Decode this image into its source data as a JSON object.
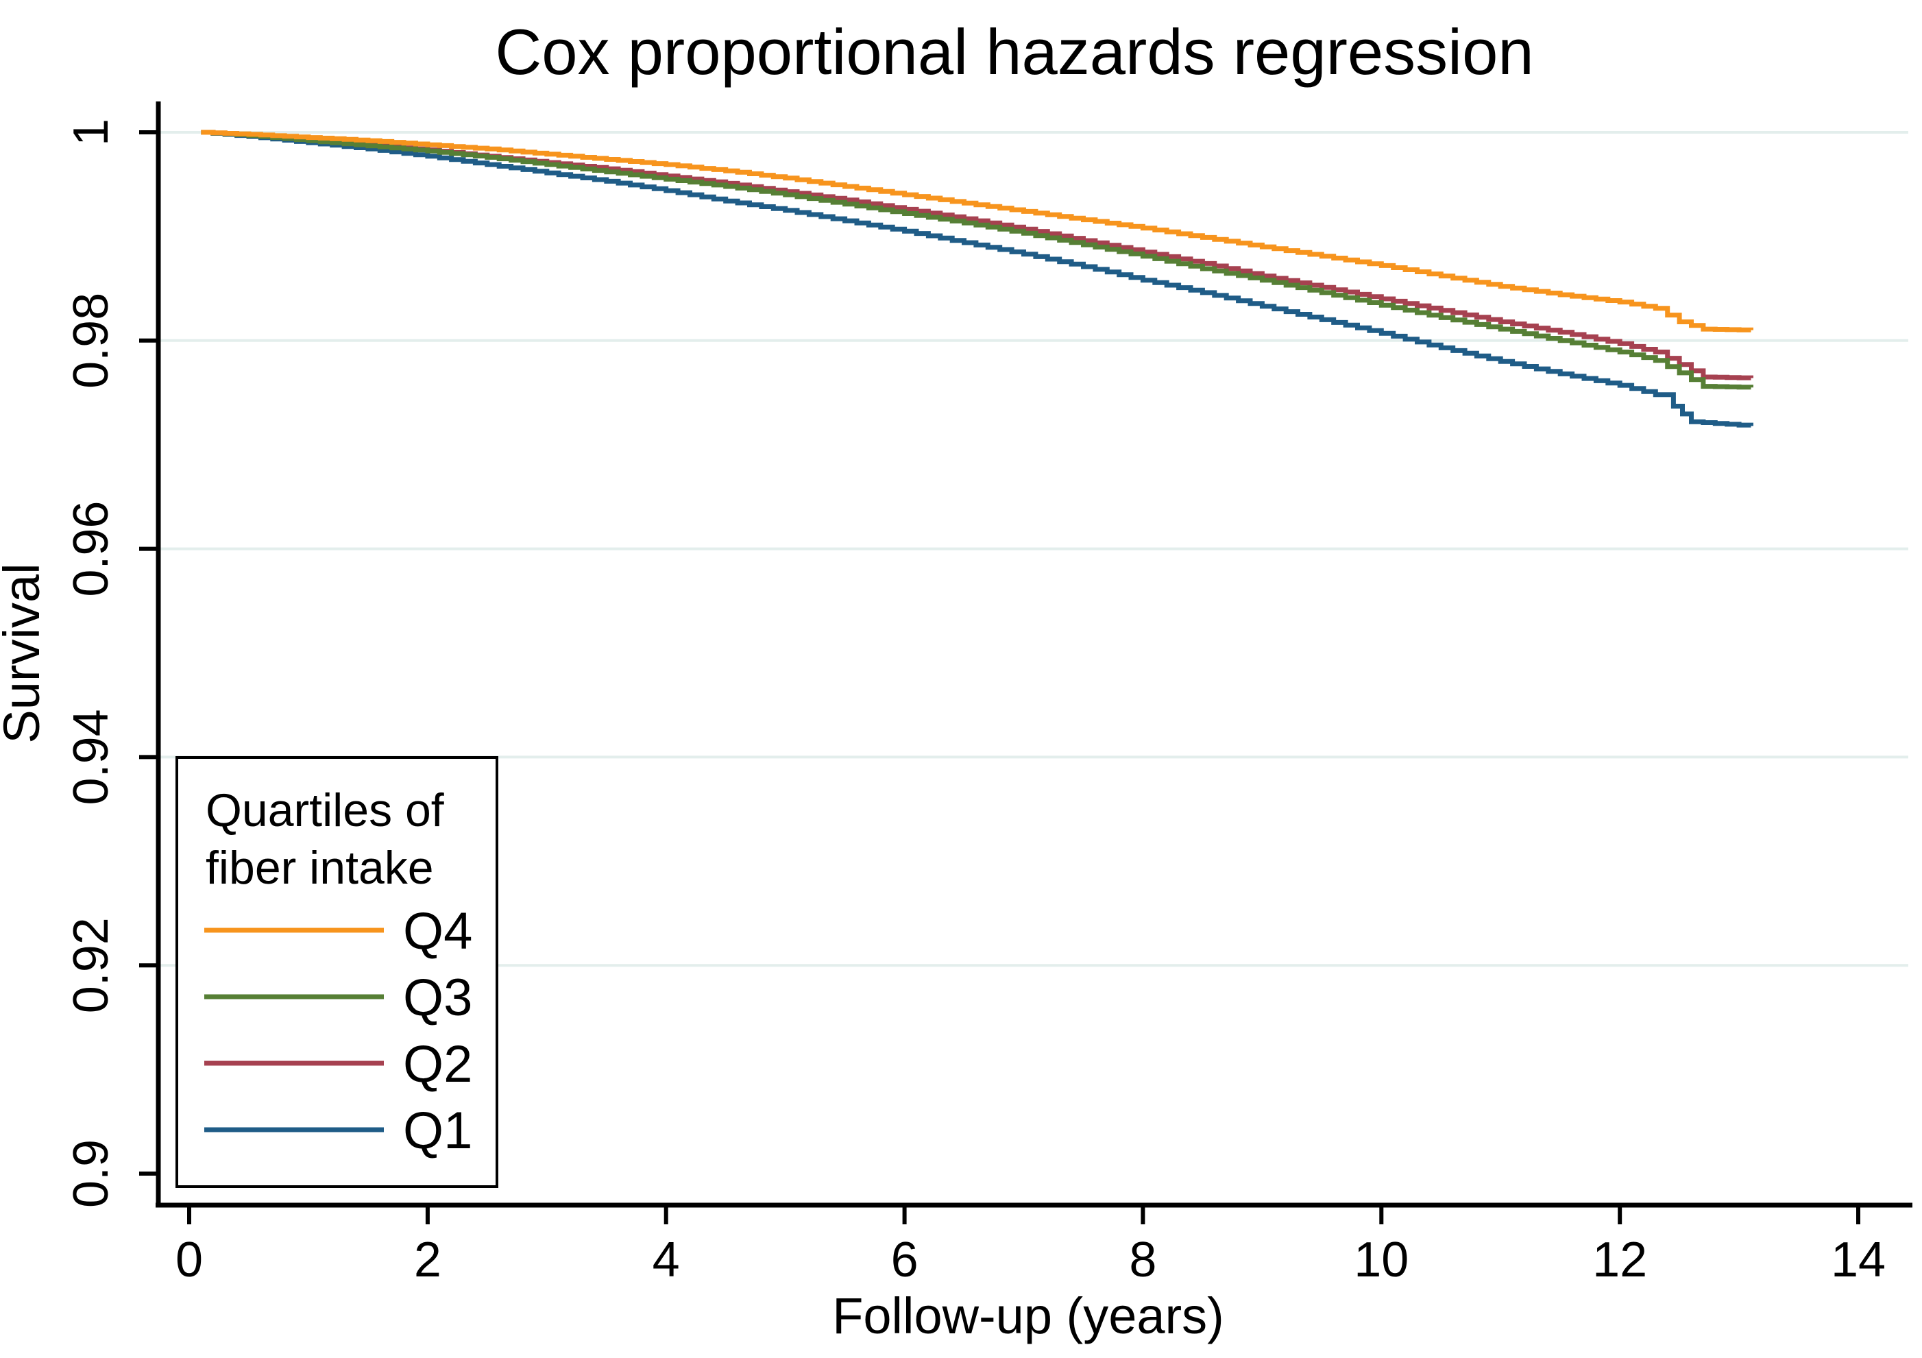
{
  "title_color": "#1e3462",
  "axis_color": "#000000",
  "gridline_color": "#e3eeec",
  "background_color": "#ffffff",
  "chart_data": {
    "type": "line",
    "subtype": "kaplan-meier-step",
    "title": "Cox proportional hazards regression",
    "xlabel": "Follow-up (years)",
    "ylabel": "Survival",
    "xlim": [
      0,
      14
    ],
    "ylim": [
      0.9,
      1.0
    ],
    "xticks": [
      0,
      2,
      4,
      6,
      8,
      10,
      12,
      14
    ],
    "xtick_labels": [
      "0",
      "2",
      "4",
      "6",
      "8",
      "10",
      "12",
      "14"
    ],
    "yticks": [
      0.9,
      0.92,
      0.94,
      0.96,
      0.98,
      1
    ],
    "ytick_labels": [
      "0.9",
      "0.92",
      "0.94",
      "0.96",
      "0.98",
      "1"
    ],
    "grid": "horizontal",
    "gridline_values": [
      1,
      0.98,
      0.96,
      0.94,
      0.92
    ],
    "legend": {
      "title_lines": [
        "Quartiles of",
        "fiber intake"
      ],
      "position": "bottom-left",
      "entries": [
        "Q4",
        "Q3",
        "Q2",
        "Q1"
      ]
    },
    "series": [
      {
        "name": "Q4",
        "color": "#f7941d",
        "points": [
          [
            0.1,
            1.0
          ],
          [
            0.5,
            0.9998
          ],
          [
            1,
            0.9995
          ],
          [
            1.5,
            0.9992
          ],
          [
            2,
            0.9988
          ],
          [
            2.5,
            0.9984
          ],
          [
            3,
            0.9979
          ],
          [
            3.5,
            0.9974
          ],
          [
            4,
            0.9969
          ],
          [
            4.5,
            0.9963
          ],
          [
            5,
            0.9956
          ],
          [
            5.5,
            0.9948
          ],
          [
            6,
            0.994
          ],
          [
            6.5,
            0.9932
          ],
          [
            7,
            0.9924
          ],
          [
            7.5,
            0.9916
          ],
          [
            8,
            0.9908
          ],
          [
            8.5,
            0.9899
          ],
          [
            9,
            0.989
          ],
          [
            9.5,
            0.9881
          ],
          [
            10,
            0.9872
          ],
          [
            10.5,
            0.9862
          ],
          [
            11,
            0.9852
          ],
          [
            11.5,
            0.9844
          ],
          [
            12,
            0.9837
          ],
          [
            12.3,
            0.9831
          ],
          [
            12.5,
            0.9818
          ],
          [
            12.7,
            0.9811
          ],
          [
            13.1,
            0.981
          ]
        ]
      },
      {
        "name": "Q3",
        "color": "#567f35",
        "points": [
          [
            0.1,
            1.0
          ],
          [
            0.5,
            0.9997
          ],
          [
            1,
            0.9992
          ],
          [
            1.5,
            0.9987
          ],
          [
            2,
            0.9982
          ],
          [
            2.5,
            0.9976
          ],
          [
            3,
            0.9969
          ],
          [
            3.5,
            0.9962
          ],
          [
            4,
            0.9955
          ],
          [
            4.5,
            0.9948
          ],
          [
            5,
            0.994
          ],
          [
            5.5,
            0.9931
          ],
          [
            6,
            0.9922
          ],
          [
            6.5,
            0.9913
          ],
          [
            7,
            0.9903
          ],
          [
            7.5,
            0.9892
          ],
          [
            8,
            0.9881
          ],
          [
            8.5,
            0.9869
          ],
          [
            9,
            0.9858
          ],
          [
            9.5,
            0.9846
          ],
          [
            10,
            0.9834
          ],
          [
            10.5,
            0.9822
          ],
          [
            11,
            0.9811
          ],
          [
            11.5,
            0.98
          ],
          [
            12,
            0.9789
          ],
          [
            12.3,
            0.9781
          ],
          [
            12.5,
            0.9769
          ],
          [
            12.7,
            0.9756
          ],
          [
            13.1,
            0.9755
          ]
        ]
      },
      {
        "name": "Q2",
        "color": "#a64150",
        "points": [
          [
            0.1,
            1.0
          ],
          [
            0.5,
            0.9997
          ],
          [
            1,
            0.9993
          ],
          [
            1.5,
            0.9988
          ],
          [
            2,
            0.9983
          ],
          [
            2.5,
            0.9977
          ],
          [
            3,
            0.9971
          ],
          [
            3.5,
            0.9965
          ],
          [
            4,
            0.9958
          ],
          [
            4.5,
            0.9951
          ],
          [
            5,
            0.9943
          ],
          [
            5.5,
            0.9935
          ],
          [
            6,
            0.9926
          ],
          [
            6.5,
            0.9917
          ],
          [
            7,
            0.9907
          ],
          [
            7.5,
            0.9896
          ],
          [
            8,
            0.9885
          ],
          [
            8.5,
            0.9874
          ],
          [
            9,
            0.9862
          ],
          [
            9.5,
            0.9851
          ],
          [
            10,
            0.984
          ],
          [
            10.5,
            0.9829
          ],
          [
            11,
            0.9818
          ],
          [
            11.5,
            0.9808
          ],
          [
            12,
            0.9797
          ],
          [
            12.3,
            0.9789
          ],
          [
            12.5,
            0.9777
          ],
          [
            12.7,
            0.9765
          ],
          [
            13.1,
            0.9764
          ]
        ]
      },
      {
        "name": "Q1",
        "color": "#1f5c87",
        "points": [
          [
            0.1,
            1.0
          ],
          [
            0.5,
            0.9996
          ],
          [
            1,
            0.999
          ],
          [
            1.5,
            0.9984
          ],
          [
            2,
            0.9977
          ],
          [
            2.5,
            0.9969
          ],
          [
            3,
            0.9961
          ],
          [
            3.5,
            0.9953
          ],
          [
            4,
            0.9944
          ],
          [
            4.5,
            0.9934
          ],
          [
            5,
            0.9925
          ],
          [
            5.5,
            0.9915
          ],
          [
            6,
            0.9905
          ],
          [
            6.5,
            0.9894
          ],
          [
            7,
            0.9883
          ],
          [
            7.5,
            0.9871
          ],
          [
            8,
            0.9858
          ],
          [
            8.5,
            0.9846
          ],
          [
            9,
            0.9833
          ],
          [
            9.5,
            0.982
          ],
          [
            10,
            0.9807
          ],
          [
            10.5,
            0.9793
          ],
          [
            11,
            0.978
          ],
          [
            11.5,
            0.9768
          ],
          [
            12,
            0.9757
          ],
          [
            12.3,
            0.9748
          ],
          [
            12.45,
            0.9737
          ],
          [
            12.6,
            0.9722
          ],
          [
            13.1,
            0.9718
          ]
        ]
      }
    ]
  }
}
